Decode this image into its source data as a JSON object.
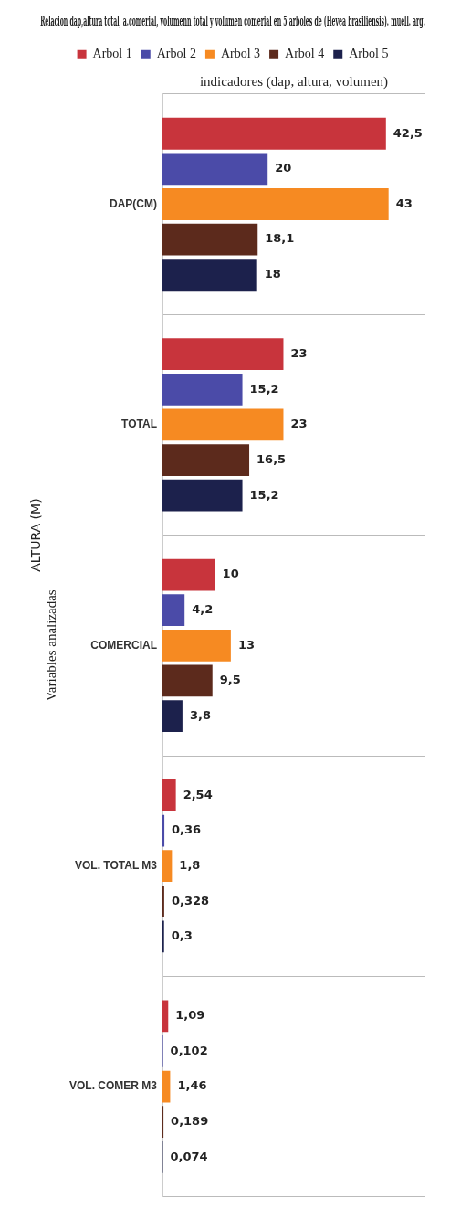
{
  "chart_data": {
    "type": "bar",
    "orientation": "horizontal",
    "title": "Relacion dap,altura total, a.comerial, volumenn total y volumen comerial en 5 arboles de (Hevea brasiliensis). muell. arg.",
    "xlabel": "indicadores (dap, altura, volumen)",
    "ylabel": "Variables analizadas",
    "annotations": [
      "ALTURA (M)"
    ],
    "categories": [
      "DAP(CM)",
      "TOTAL",
      "COMERCIAL",
      "VOL. TOTAL M3",
      "VOL. COMER M3"
    ],
    "legend": "top",
    "grid": "y",
    "series": [
      {
        "name": "Arbol 1",
        "color": "#c8343c",
        "values": [
          42.5,
          23,
          10,
          2.54,
          1.09
        ],
        "value_labels": [
          "42,5",
          "23",
          "10",
          "2,54",
          "1,09"
        ]
      },
      {
        "name": "Arbol 2",
        "color": "#4b4ba8",
        "values": [
          20,
          15.2,
          4.2,
          0.36,
          0.102
        ],
        "value_labels": [
          "20",
          "15,2",
          "4,2",
          "0,36",
          "0,102"
        ]
      },
      {
        "name": "Arbol 3",
        "color": "#f68a22",
        "values": [
          43,
          23,
          13,
          1.8,
          1.46
        ],
        "value_labels": [
          "43",
          "23",
          "13",
          "1,8",
          "1,46"
        ]
      },
      {
        "name": "Arbol 4",
        "color": "#5c2a1c",
        "values": [
          18.1,
          16.5,
          9.5,
          0.328,
          0.189
        ],
        "value_labels": [
          "18,1",
          "16,5",
          "9,5",
          "0,328",
          "0,189"
        ]
      },
      {
        "name": "Arbol 5",
        "color": "#1c214c",
        "values": [
          18,
          15.2,
          3.8,
          0.3,
          0.074
        ],
        "value_labels": [
          "18",
          "15,2",
          "3,8",
          "0,3",
          "0,074"
        ]
      }
    ]
  }
}
